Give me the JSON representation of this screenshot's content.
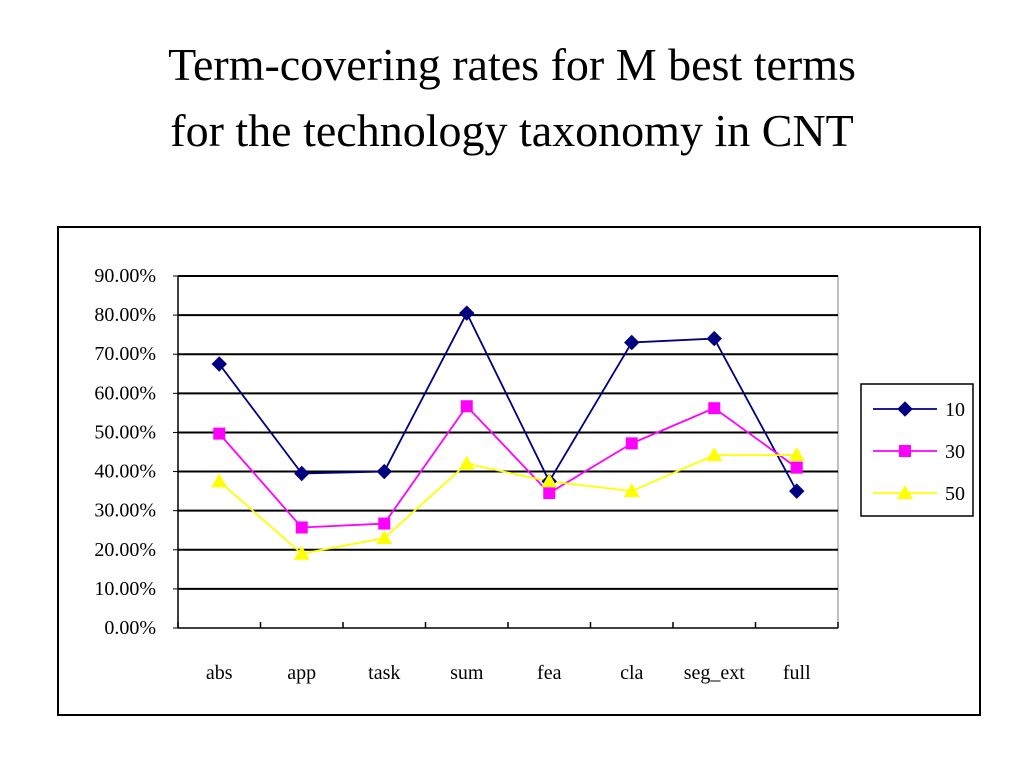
{
  "title_line1": "Term-covering rates for M best terms",
  "title_line2": "for the technology taxonomy in CNT",
  "chart_data": {
    "type": "line",
    "categories": [
      "abs",
      "app",
      "task",
      "sum",
      "fea",
      "cla",
      "seg_ext",
      "full"
    ],
    "y_ticks": [
      "0.00%",
      "10.00%",
      "20.00%",
      "30.00%",
      "40.00%",
      "50.00%",
      "60.00%",
      "70.00%",
      "80.00%",
      "90.00%"
    ],
    "ylim": [
      0,
      90
    ],
    "grid": true,
    "legend_position": "right",
    "series": [
      {
        "name": "10",
        "color": "#000080",
        "marker": "diamond",
        "values": [
          67.5,
          39.5,
          40.0,
          80.5,
          37.5,
          73.0,
          74.0,
          35.0
        ]
      },
      {
        "name": "30",
        "color": "#ff00ff",
        "marker": "square",
        "values": [
          49.7,
          25.7,
          26.7,
          56.7,
          34.5,
          47.2,
          56.2,
          41.0
        ]
      },
      {
        "name": "50",
        "color": "#ffff00",
        "marker": "triangle",
        "values": [
          37.5,
          19.0,
          23.0,
          42.0,
          37.5,
          35.0,
          44.2,
          44.2
        ]
      }
    ]
  }
}
